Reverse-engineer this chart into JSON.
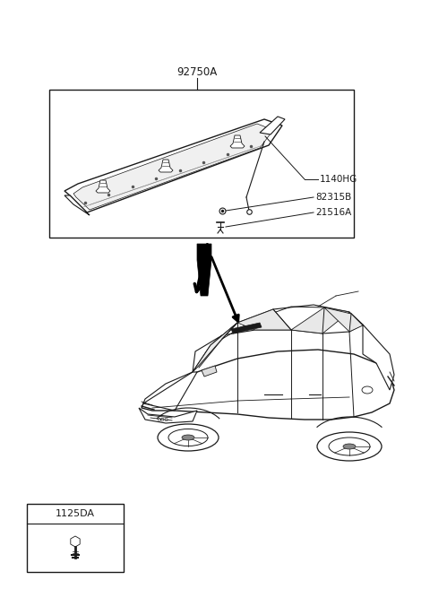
{
  "bg_color": "#ffffff",
  "line_color": "#1a1a1a",
  "figsize": [
    4.8,
    6.57
  ],
  "dpi": 100,
  "part_box_label": "92750A",
  "parts_labels": [
    "1140HG",
    "82315B",
    "21516A"
  ],
  "legend_label": "1125DA"
}
